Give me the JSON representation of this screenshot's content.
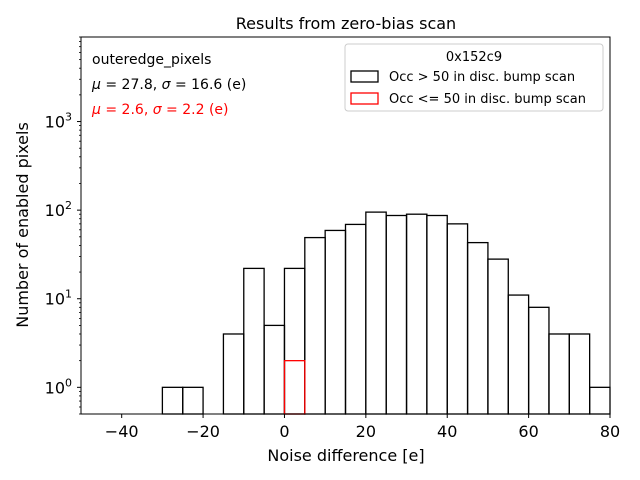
{
  "chart_data": {
    "type": "histogram",
    "title": "Results from zero-bias scan",
    "xlabel": "Noise difference [e]",
    "ylabel": "Number of enabled pixels",
    "xlim": [
      -50,
      80
    ],
    "ylim": [
      0.5,
      9000
    ],
    "yscale": "log",
    "grid": false,
    "legend_placement": "top-right",
    "legend_title": "0x152c9",
    "x_ticks": [
      {
        "value": -40,
        "label": "−40"
      },
      {
        "value": -20,
        "label": "−20"
      },
      {
        "value": 0,
        "label": "0"
      },
      {
        "value": 20,
        "label": "20"
      },
      {
        "value": 40,
        "label": "40"
      },
      {
        "value": 60,
        "label": "60"
      },
      {
        "value": 80,
        "label": "80"
      }
    ],
    "y_ticks": [
      {
        "value": 1,
        "base": "10",
        "exp": "0"
      },
      {
        "value": 10,
        "base": "10",
        "exp": "1"
      },
      {
        "value": 100,
        "base": "10",
        "exp": "2"
      },
      {
        "value": 1000,
        "base": "10",
        "exp": "3"
      }
    ],
    "annotations": [
      {
        "text": "outeredge_pixels",
        "color": "#000000"
      },
      {
        "parts": [
          "μ",
          " = 27.8, ",
          "σ",
          " = 16.6 (e)"
        ],
        "color": "#000000"
      },
      {
        "parts": [
          "μ",
          " = 2.6, ",
          "σ",
          " = 2.2 (e)"
        ],
        "color": "#ff0000"
      }
    ],
    "series": [
      {
        "name": "Occ > 50 in disc. bump scan",
        "color": "#000000",
        "bin_edges": [
          -30,
          -25,
          -20,
          -15,
          -10,
          -5,
          0,
          5,
          10,
          15,
          20,
          25,
          30,
          35,
          40,
          45,
          50,
          55,
          60,
          65,
          70,
          75,
          80
        ],
        "counts": [
          1,
          1,
          0,
          4,
          22,
          5,
          22,
          49,
          59,
          69,
          95,
          87,
          90,
          87,
          70,
          43,
          28,
          11,
          8,
          4,
          4,
          1
        ]
      },
      {
        "name": "Occ <= 50 in disc. bump scan",
        "color": "#ff0000",
        "bin_edges": [
          0,
          5
        ],
        "counts": [
          2
        ]
      }
    ]
  }
}
